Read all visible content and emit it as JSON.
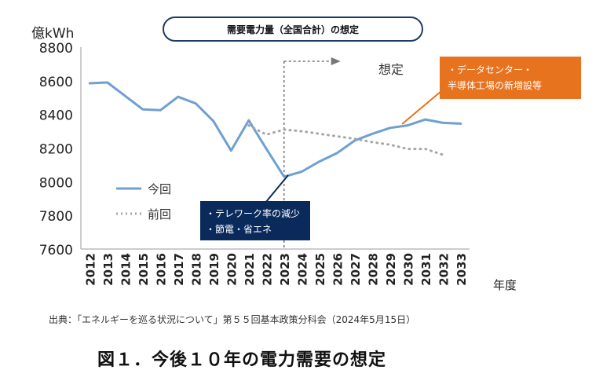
{
  "chart_data": {
    "type": "line",
    "title": "需要電力量（全国合計）の想定",
    "ylabel": "億kWh",
    "xlabel": "年度",
    "ylim": [
      7600,
      8800
    ],
    "yticks": [
      7600,
      7800,
      8000,
      8200,
      8400,
      8600,
      8800
    ],
    "x": [
      "2012",
      "2013",
      "2014",
      "2015",
      "2016",
      "2017",
      "2018",
      "2019",
      "2020",
      "2021",
      "2022",
      "2023",
      "2024",
      "2025",
      "2026",
      "2027",
      "2028",
      "2029",
      "2030",
      "2031",
      "2032",
      "2033"
    ],
    "series": [
      {
        "name": "今回",
        "style": "solid",
        "color": "#6fa0d2",
        "values": [
          8585,
          8590,
          8510,
          8430,
          8425,
          8505,
          8465,
          8360,
          8185,
          8365,
          8195,
          8030,
          8060,
          8120,
          8170,
          8245,
          8285,
          8320,
          8335,
          8370,
          8350,
          8345
        ]
      },
      {
        "name": "前回",
        "style": "dotted",
        "color": "#a6a6a6",
        "values": [
          null,
          null,
          null,
          null,
          null,
          null,
          null,
          null,
          null,
          8335,
          8280,
          8310,
          8300,
          8285,
          8270,
          8255,
          8235,
          8220,
          8195,
          8195,
          8160,
          null
        ]
      }
    ],
    "grid": false,
    "legend_position": "left-middle",
    "forecast_label": "想定",
    "forecast_start": "2023",
    "annotations": [
      {
        "lines": [
          "・データセンター・",
          "半導体工場の新増設等"
        ],
        "color": "#e8731e"
      },
      {
        "lines": [
          "・テレワーク率の減少",
          "・節電・省エネ"
        ],
        "color": "#0b2a5c"
      }
    ]
  },
  "source": "出典：「エネルギーを巡る状況について」第５５回基本政策分科会（2024年5月15日）",
  "caption": "図１．今後１０年の電力需要の想定"
}
